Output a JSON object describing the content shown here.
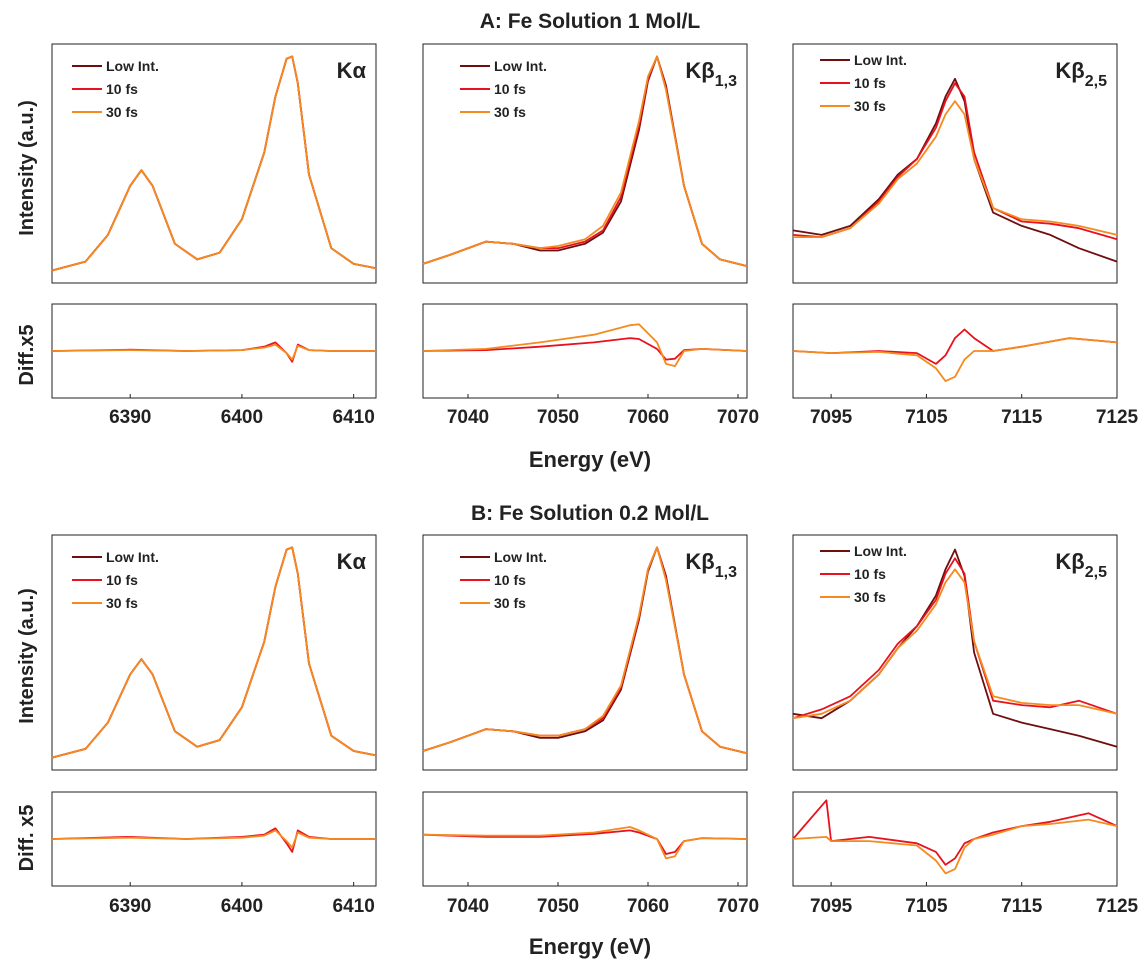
{
  "figure": {
    "xlabel": "Energy (eV)",
    "panel_titles": [
      "A:  Fe Solution 1 Mol/L",
      "B:  Fe Solution 0.2 Mol/L"
    ],
    "ylabel_top": "Intensity (a.u.)",
    "ylabel_diff": [
      "Diff.x5",
      "Diff. x5"
    ]
  },
  "legend": [
    "Low Int.",
    "10 fs",
    "30 fs"
  ],
  "colors": {
    "low": "#6e0f0f",
    "fs10": "#e8121e",
    "fs30": "#f58a1f"
  },
  "columns": [
    {
      "label": "Kα",
      "sub": "",
      "xlim": [
        6383,
        6412
      ],
      "ticks": [
        6390,
        6400,
        6410
      ]
    },
    {
      "label": "Kβ",
      "sub": "1,3",
      "xlim": [
        7035,
        7071
      ],
      "ticks": [
        7040,
        7050,
        7060,
        7070
      ]
    },
    {
      "label": "Kβ",
      "sub": "2,5",
      "xlim": [
        7091,
        7125
      ],
      "ticks": [
        7095,
        7105,
        7115,
        7125
      ]
    }
  ],
  "chart_data": [
    {
      "type": "line",
      "title": "A:  Fe Solution 1 Mol/L",
      "line": "Kα",
      "xlabel": "Energy (eV)",
      "ylabel": "Intensity (a.u.)",
      "x": [
        6383,
        6386,
        6388,
        6390,
        6391,
        6392,
        6394,
        6396,
        6398,
        6400,
        6402,
        6403,
        6404,
        6404.5,
        6405,
        6406,
        6408,
        6410,
        6412
      ],
      "series": [
        {
          "name": "Low Int.",
          "values": [
            0.02,
            0.06,
            0.18,
            0.4,
            0.47,
            0.4,
            0.14,
            0.07,
            0.1,
            0.25,
            0.55,
            0.8,
            0.97,
            0.98,
            0.86,
            0.45,
            0.12,
            0.05,
            0.03
          ]
        },
        {
          "name": "10 fs",
          "values": [
            0.02,
            0.06,
            0.18,
            0.4,
            0.47,
            0.4,
            0.14,
            0.07,
            0.1,
            0.25,
            0.55,
            0.8,
            0.97,
            0.98,
            0.86,
            0.45,
            0.12,
            0.05,
            0.03
          ]
        },
        {
          "name": "30 fs",
          "values": [
            0.02,
            0.06,
            0.18,
            0.4,
            0.47,
            0.4,
            0.14,
            0.07,
            0.1,
            0.25,
            0.55,
            0.8,
            0.97,
            0.98,
            0.86,
            0.45,
            0.12,
            0.05,
            0.03
          ]
        }
      ]
    },
    {
      "type": "line",
      "title": "A:  Fe Solution 1 Mol/L",
      "line": "Kβ1,3",
      "xlabel": "Energy (eV)",
      "ylabel": "Intensity (a.u.)",
      "x": [
        7035,
        7038,
        7042,
        7045,
        7048,
        7050,
        7053,
        7055,
        7057,
        7059,
        7060,
        7061,
        7062,
        7064,
        7066,
        7068,
        7071
      ],
      "series": [
        {
          "name": "Low Int.",
          "values": [
            0.05,
            0.09,
            0.15,
            0.14,
            0.11,
            0.11,
            0.14,
            0.19,
            0.33,
            0.65,
            0.87,
            0.98,
            0.85,
            0.4,
            0.14,
            0.07,
            0.04
          ]
        },
        {
          "name": "10 fs",
          "values": [
            0.05,
            0.09,
            0.15,
            0.14,
            0.12,
            0.12,
            0.15,
            0.2,
            0.35,
            0.67,
            0.88,
            0.98,
            0.84,
            0.4,
            0.14,
            0.07,
            0.04
          ]
        },
        {
          "name": "30 fs",
          "values": [
            0.05,
            0.09,
            0.15,
            0.14,
            0.12,
            0.13,
            0.16,
            0.22,
            0.37,
            0.69,
            0.89,
            0.98,
            0.83,
            0.4,
            0.14,
            0.07,
            0.04
          ]
        }
      ]
    },
    {
      "type": "line",
      "title": "A:  Fe Solution 1 Mol/L",
      "line": "Kβ2,5",
      "xlabel": "Energy (eV)",
      "ylabel": "Intensity (a.u.)",
      "x": [
        7091,
        7094,
        7097,
        7100,
        7102,
        7104,
        7106,
        7107,
        7108,
        7109,
        7110,
        7112,
        7115,
        7118,
        7121,
        7125
      ],
      "series": [
        {
          "name": "Low Int.",
          "values": [
            0.2,
            0.18,
            0.22,
            0.34,
            0.45,
            0.52,
            0.68,
            0.8,
            0.88,
            0.78,
            0.52,
            0.28,
            0.22,
            0.18,
            0.12,
            0.06
          ]
        },
        {
          "name": "10 fs",
          "values": [
            0.18,
            0.17,
            0.21,
            0.33,
            0.44,
            0.52,
            0.66,
            0.78,
            0.86,
            0.8,
            0.55,
            0.3,
            0.24,
            0.23,
            0.21,
            0.16
          ]
        },
        {
          "name": "30 fs",
          "values": [
            0.17,
            0.17,
            0.21,
            0.32,
            0.43,
            0.5,
            0.62,
            0.72,
            0.78,
            0.72,
            0.52,
            0.3,
            0.25,
            0.24,
            0.22,
            0.18
          ]
        }
      ]
    },
    {
      "type": "line",
      "title": "A:  Fe Solution 1 Mol/L",
      "line": "Kα",
      "xlabel": "Energy (eV)",
      "ylabel": "Diff.x5",
      "ylim": [
        -1,
        1
      ],
      "x": [
        6383,
        6390,
        6395,
        6400,
        6402,
        6403,
        6404,
        6404.5,
        6405,
        6406,
        6408,
        6412
      ],
      "series": [
        {
          "name": "10 fs",
          "values": [
            0,
            0.03,
            0,
            0.02,
            0.1,
            0.2,
            -0.05,
            -0.25,
            0.15,
            0.02,
            0,
            0
          ]
        },
        {
          "name": "30 fs",
          "values": [
            0,
            0.02,
            0,
            0.02,
            0.08,
            0.15,
            -0.05,
            -0.2,
            0.12,
            0.02,
            0,
            0
          ]
        }
      ]
    },
    {
      "type": "line",
      "title": "A:  Fe Solution 1 Mol/L",
      "line": "Kβ1,3",
      "xlabel": "Energy (eV)",
      "ylabel": "Diff.x5",
      "ylim": [
        -1,
        1
      ],
      "x": [
        7035,
        7042,
        7048,
        7054,
        7058,
        7059,
        7061,
        7062,
        7063,
        7064,
        7066,
        7071
      ],
      "series": [
        {
          "name": "10 fs",
          "values": [
            0,
            0.02,
            0.1,
            0.2,
            0.3,
            0.28,
            0.05,
            -0.2,
            -0.18,
            0.02,
            0.05,
            0
          ]
        },
        {
          "name": "30 fs",
          "values": [
            0,
            0.05,
            0.2,
            0.38,
            0.6,
            0.62,
            0.2,
            -0.3,
            -0.35,
            0,
            0.05,
            0
          ]
        }
      ]
    },
    {
      "type": "line",
      "title": "A:  Fe Solution 1 Mol/L",
      "line": "Kβ2,5",
      "xlabel": "Energy (eV)",
      "ylabel": "Diff.x5",
      "ylim": [
        -1,
        1
      ],
      "x": [
        7091,
        7095,
        7100,
        7104,
        7106,
        7107,
        7108,
        7109,
        7110,
        7112,
        7115,
        7120,
        7125
      ],
      "series": [
        {
          "name": "10 fs",
          "values": [
            0,
            -0.05,
            0,
            -0.05,
            -0.3,
            -0.1,
            0.3,
            0.5,
            0.3,
            0,
            0.1,
            0.3,
            0.2
          ]
        },
        {
          "name": "30 fs",
          "values": [
            0,
            -0.05,
            -0.02,
            -0.1,
            -0.4,
            -0.7,
            -0.6,
            -0.2,
            0,
            0,
            0.1,
            0.3,
            0.2
          ]
        }
      ]
    },
    {
      "type": "line",
      "title": "B:  Fe Solution 0.2 Mol/L",
      "line": "Kα",
      "xlabel": "Energy (eV)",
      "ylabel": "Intensity (a.u.)",
      "x": [
        6383,
        6386,
        6388,
        6390,
        6391,
        6392,
        6394,
        6396,
        6398,
        6400,
        6402,
        6403,
        6404,
        6404.5,
        6405,
        6406,
        6408,
        6410,
        6412
      ],
      "series": [
        {
          "name": "Low Int.",
          "values": [
            0.02,
            0.06,
            0.18,
            0.4,
            0.47,
            0.4,
            0.14,
            0.07,
            0.1,
            0.25,
            0.55,
            0.8,
            0.97,
            0.98,
            0.86,
            0.45,
            0.12,
            0.05,
            0.03
          ]
        },
        {
          "name": "10 fs",
          "values": [
            0.02,
            0.06,
            0.18,
            0.4,
            0.47,
            0.4,
            0.14,
            0.07,
            0.1,
            0.25,
            0.55,
            0.8,
            0.97,
            0.98,
            0.86,
            0.45,
            0.12,
            0.05,
            0.03
          ]
        },
        {
          "name": "30 fs",
          "values": [
            0.02,
            0.06,
            0.18,
            0.4,
            0.47,
            0.4,
            0.14,
            0.07,
            0.1,
            0.25,
            0.55,
            0.8,
            0.97,
            0.98,
            0.86,
            0.45,
            0.12,
            0.05,
            0.03
          ]
        }
      ]
    },
    {
      "type": "line",
      "title": "B:  Fe Solution 0.2 Mol/L",
      "line": "Kβ1,3",
      "xlabel": "Energy (eV)",
      "ylabel": "Intensity (a.u.)",
      "x": [
        7035,
        7038,
        7042,
        7045,
        7048,
        7050,
        7053,
        7055,
        7057,
        7059,
        7060,
        7061,
        7062,
        7064,
        7066,
        7068,
        7071
      ],
      "series": [
        {
          "name": "Low Int.",
          "values": [
            0.05,
            0.09,
            0.15,
            0.14,
            0.11,
            0.11,
            0.14,
            0.19,
            0.33,
            0.65,
            0.87,
            0.98,
            0.85,
            0.4,
            0.14,
            0.07,
            0.04
          ]
        },
        {
          "name": "10 fs",
          "values": [
            0.05,
            0.09,
            0.15,
            0.14,
            0.12,
            0.12,
            0.15,
            0.2,
            0.34,
            0.66,
            0.88,
            0.98,
            0.84,
            0.4,
            0.14,
            0.07,
            0.04
          ]
        },
        {
          "name": "30 fs",
          "values": [
            0.05,
            0.09,
            0.15,
            0.14,
            0.12,
            0.12,
            0.15,
            0.21,
            0.35,
            0.67,
            0.88,
            0.98,
            0.83,
            0.4,
            0.14,
            0.07,
            0.04
          ]
        }
      ]
    },
    {
      "type": "line",
      "title": "B:  Fe Solution 0.2 Mol/L",
      "line": "Kβ2,5",
      "xlabel": "Energy (eV)",
      "ylabel": "Intensity (a.u.)",
      "x": [
        7091,
        7094,
        7097,
        7100,
        7102,
        7104,
        7106,
        7107,
        7108,
        7109,
        7110,
        7112,
        7115,
        7118,
        7121,
        7125
      ],
      "series": [
        {
          "name": "Low Int.",
          "values": [
            0.22,
            0.2,
            0.28,
            0.4,
            0.52,
            0.62,
            0.76,
            0.88,
            0.97,
            0.85,
            0.5,
            0.22,
            0.18,
            0.15,
            0.12,
            0.07
          ]
        },
        {
          "name": "10 fs",
          "values": [
            0.2,
            0.24,
            0.3,
            0.42,
            0.54,
            0.62,
            0.74,
            0.86,
            0.93,
            0.86,
            0.55,
            0.28,
            0.26,
            0.25,
            0.28,
            0.22
          ]
        },
        {
          "name": "30 fs",
          "values": [
            0.2,
            0.22,
            0.28,
            0.4,
            0.52,
            0.6,
            0.72,
            0.82,
            0.88,
            0.82,
            0.55,
            0.3,
            0.27,
            0.26,
            0.26,
            0.22
          ]
        }
      ]
    },
    {
      "type": "line",
      "title": "B:  Fe Solution 0.2 Mol/L",
      "line": "Kα",
      "xlabel": "Energy (eV)",
      "ylabel": "Diff. x5",
      "ylim": [
        -1,
        1
      ],
      "x": [
        6383,
        6390,
        6395,
        6400,
        6402,
        6403,
        6404,
        6404.5,
        6405,
        6406,
        6408,
        6412
      ],
      "series": [
        {
          "name": "10 fs",
          "values": [
            0,
            0.05,
            0,
            0.05,
            0.1,
            0.25,
            -0.1,
            -0.3,
            0.2,
            0.05,
            0,
            0
          ]
        },
        {
          "name": "30 fs",
          "values": [
            0,
            0.03,
            0,
            0.03,
            0.08,
            0.2,
            -0.05,
            -0.2,
            0.15,
            0.03,
            0,
            0
          ]
        }
      ]
    },
    {
      "type": "line",
      "title": "B:  Fe Solution 0.2 Mol/L",
      "line": "Kβ1,3",
      "xlabel": "Energy (eV)",
      "ylabel": "Diff. x5",
      "ylim": [
        -1,
        1
      ],
      "x": [
        7035,
        7042,
        7048,
        7054,
        7058,
        7059,
        7061,
        7062,
        7063,
        7064,
        7066,
        7071
      ],
      "series": [
        {
          "name": "10 fs",
          "values": [
            0.1,
            0.05,
            0.05,
            0.12,
            0.2,
            0.15,
            0,
            -0.35,
            -0.3,
            -0.05,
            0.02,
            0
          ]
        },
        {
          "name": "30 fs",
          "values": [
            0.1,
            0.08,
            0.08,
            0.15,
            0.28,
            0.2,
            0,
            -0.45,
            -0.4,
            -0.05,
            0.02,
            0
          ]
        }
      ]
    },
    {
      "type": "line",
      "title": "B:  Fe Solution 0.2 Mol/L",
      "line": "Kβ2,5",
      "xlabel": "Energy (eV)",
      "ylabel": "Diff. x5",
      "ylim": [
        -1,
        1
      ],
      "x": [
        7091,
        7094.5,
        7095,
        7099,
        7104,
        7106,
        7107,
        7108,
        7109,
        7110,
        7112,
        7115,
        7118,
        7122,
        7125
      ],
      "series": [
        {
          "name": "10 fs",
          "values": [
            0,
            0.9,
            -0.05,
            0.05,
            -0.1,
            -0.3,
            -0.6,
            -0.45,
            -0.1,
            0,
            0.15,
            0.3,
            0.4,
            0.6,
            0.3
          ]
        },
        {
          "name": "30 fs",
          "values": [
            0,
            0.05,
            -0.05,
            -0.05,
            -0.15,
            -0.5,
            -0.8,
            -0.7,
            -0.2,
            0,
            0.1,
            0.3,
            0.35,
            0.45,
            0.3
          ]
        }
      ]
    }
  ]
}
